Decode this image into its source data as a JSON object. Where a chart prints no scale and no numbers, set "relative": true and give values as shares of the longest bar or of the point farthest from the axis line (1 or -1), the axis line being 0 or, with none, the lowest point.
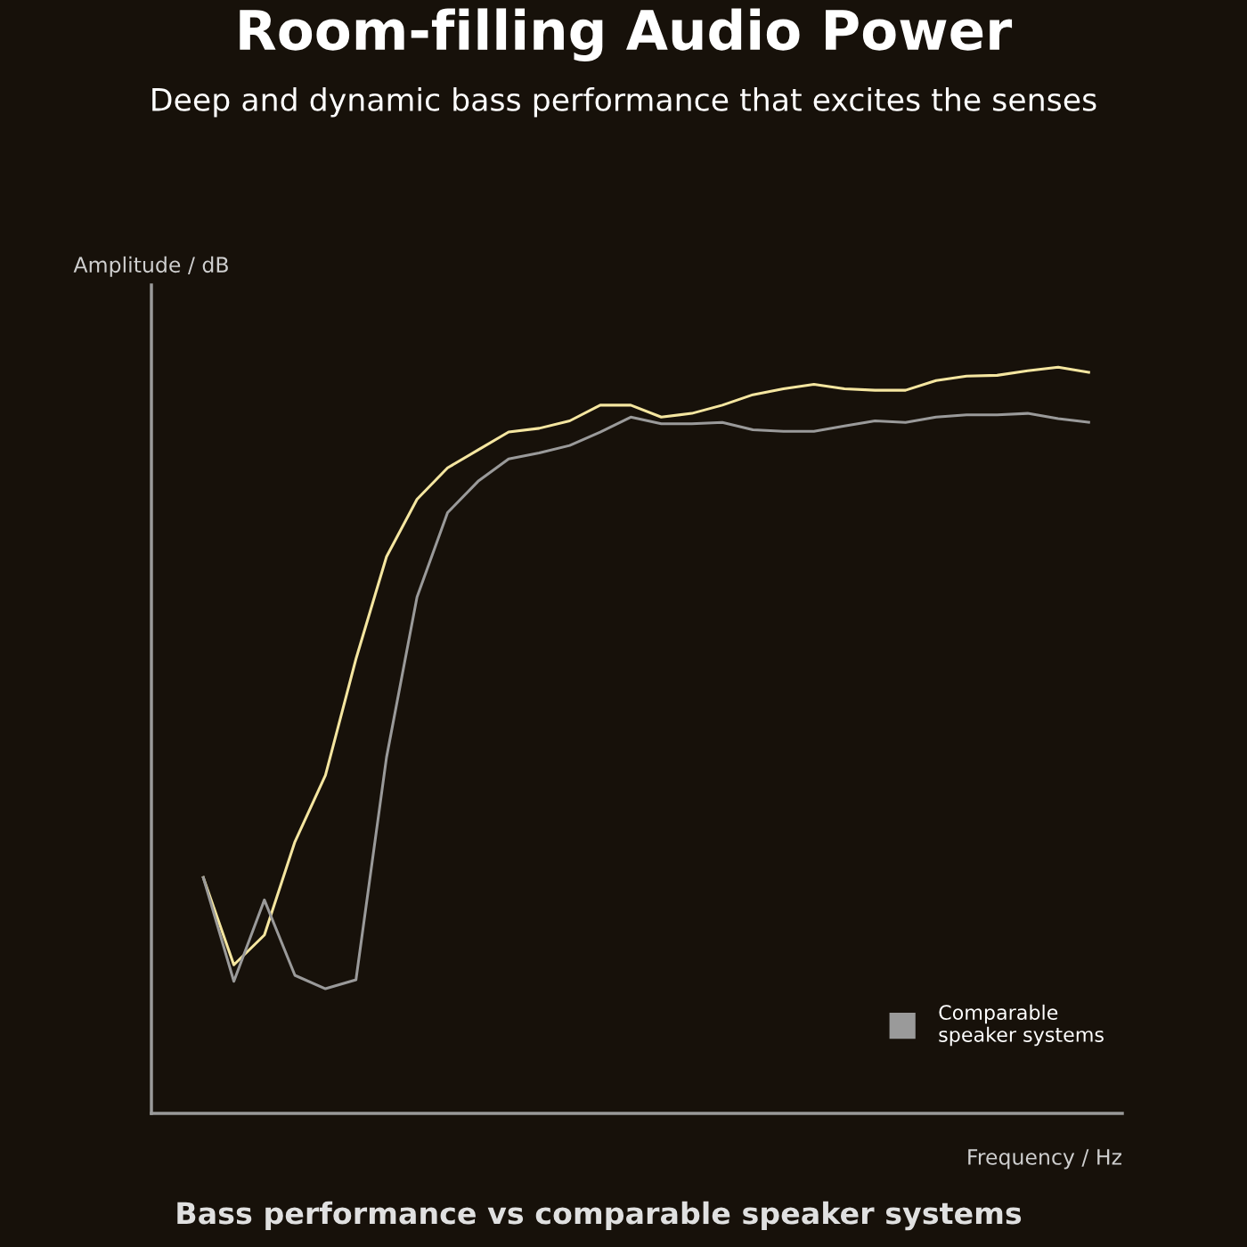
{
  "chart_data": {
    "type": "line",
    "title": "Room-filling Audio Power",
    "subtitle": "Deep and dynamic bass performance that excites the senses",
    "xlabel": "Frequency / Hz",
    "ylabel": "Amplitude / dB",
    "relative": true,
    "grid": false,
    "legend": "bottom right",
    "marker": "none",
    "line_style": "solid",
    "categories": [
      null,
      null,
      null,
      null,
      null,
      null,
      null,
      null,
      null,
      null,
      null,
      null,
      null,
      null,
      null,
      null,
      null,
      null,
      null,
      null,
      null,
      null,
      null,
      null,
      null,
      null,
      null,
      null,
      null,
      null
    ],
    "series": [
      {
        "color": "#f5e6a0",
        "values": [
          0.316,
          0.199,
          0.239,
          0.364,
          0.453,
          0.609,
          0.746,
          0.823,
          0.865,
          0.889,
          0.913,
          0.918,
          0.928,
          0.949,
          0.949,
          0.933,
          0.938,
          0.949,
          0.963,
          0.971,
          0.977,
          0.971,
          0.969,
          0.969,
          0.982,
          0.988,
          0.989,
          0.995,
          1.0,
          0.993
        ]
      },
      {
        "name": "Comparable\nspeaker systems",
        "color": "#9a9a9a",
        "values": [
          0.316,
          0.177,
          0.286,
          0.185,
          0.167,
          0.179,
          0.477,
          0.692,
          0.805,
          0.847,
          0.877,
          0.885,
          0.895,
          0.913,
          0.933,
          0.924,
          0.924,
          0.926,
          0.916,
          0.914,
          0.914,
          0.921,
          0.928,
          0.926,
          0.933,
          0.936,
          0.936,
          0.938,
          0.931,
          0.926
        ]
      }
    ],
    "annotations": [
      "Bass performance vs comparable speaker systems"
    ]
  }
}
